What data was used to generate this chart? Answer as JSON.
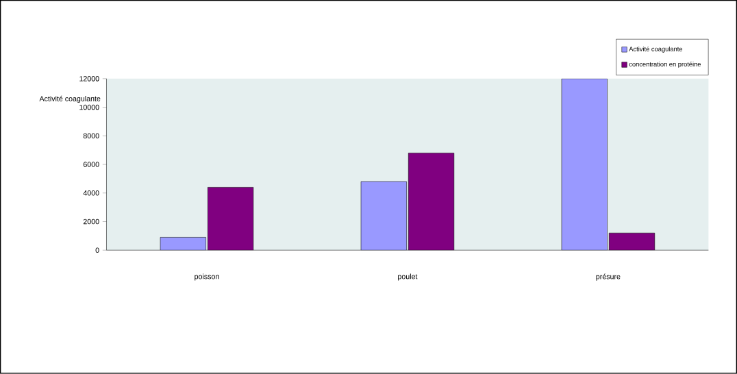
{
  "chart_data": {
    "type": "bar",
    "ylabel": "Activité coagulante",
    "categories": [
      "poisson",
      "poulet",
      "présure"
    ],
    "series": [
      {
        "name": "Activité coagulante",
        "color": "#9999ff",
        "values": [
          900,
          4800,
          12000
        ]
      },
      {
        "name": "concentration en protéine",
        "color": "#800080",
        "values": [
          4400,
          6800,
          1200
        ]
      }
    ],
    "ylim": [
      0,
      12000
    ],
    "yticks": [
      0,
      2000,
      4000,
      6000,
      8000,
      10000,
      12000
    ],
    "grid": false,
    "legend": "top right"
  }
}
